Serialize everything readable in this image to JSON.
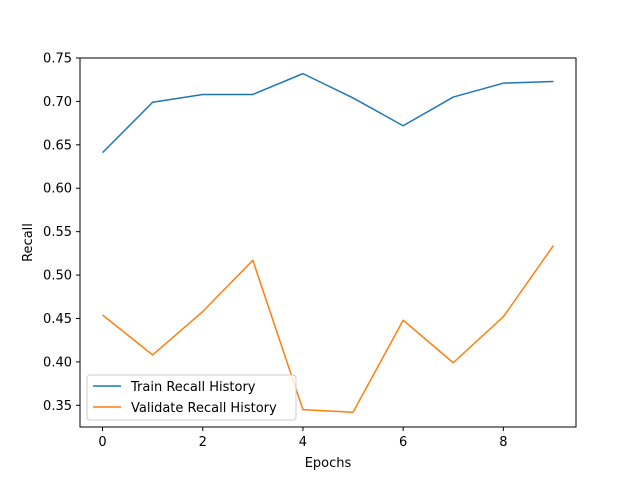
{
  "chart_data": {
    "type": "line",
    "title": "",
    "xlabel": "Epochs",
    "ylabel": "Recall",
    "xlim": [
      -0.45,
      9.45
    ],
    "ylim": [
      0.325,
      0.75
    ],
    "xticks": [
      0,
      2,
      4,
      6,
      8
    ],
    "yticks": [
      0.35,
      0.4,
      0.45,
      0.5,
      0.55,
      0.6,
      0.65,
      0.7,
      0.75
    ],
    "ytick_labels": [
      "0.35",
      "0.40",
      "0.45",
      "0.50",
      "0.55",
      "0.60",
      "0.65",
      "0.70",
      "0.75"
    ],
    "grid": false,
    "legend_position": "lower-left",
    "x": [
      0,
      1,
      2,
      3,
      4,
      5,
      6,
      7,
      8,
      9
    ],
    "series": [
      {
        "name": "Train Recall History",
        "color": "#1f77b4",
        "values": [
          0.641,
          0.699,
          0.708,
          0.708,
          0.732,
          0.704,
          0.672,
          0.705,
          0.721,
          0.723
        ]
      },
      {
        "name": "Validate Recall History",
        "color": "#ff7f0e",
        "values": [
          0.454,
          0.408,
          0.458,
          0.517,
          0.345,
          0.342,
          0.448,
          0.399,
          0.452,
          0.534
        ]
      }
    ]
  }
}
